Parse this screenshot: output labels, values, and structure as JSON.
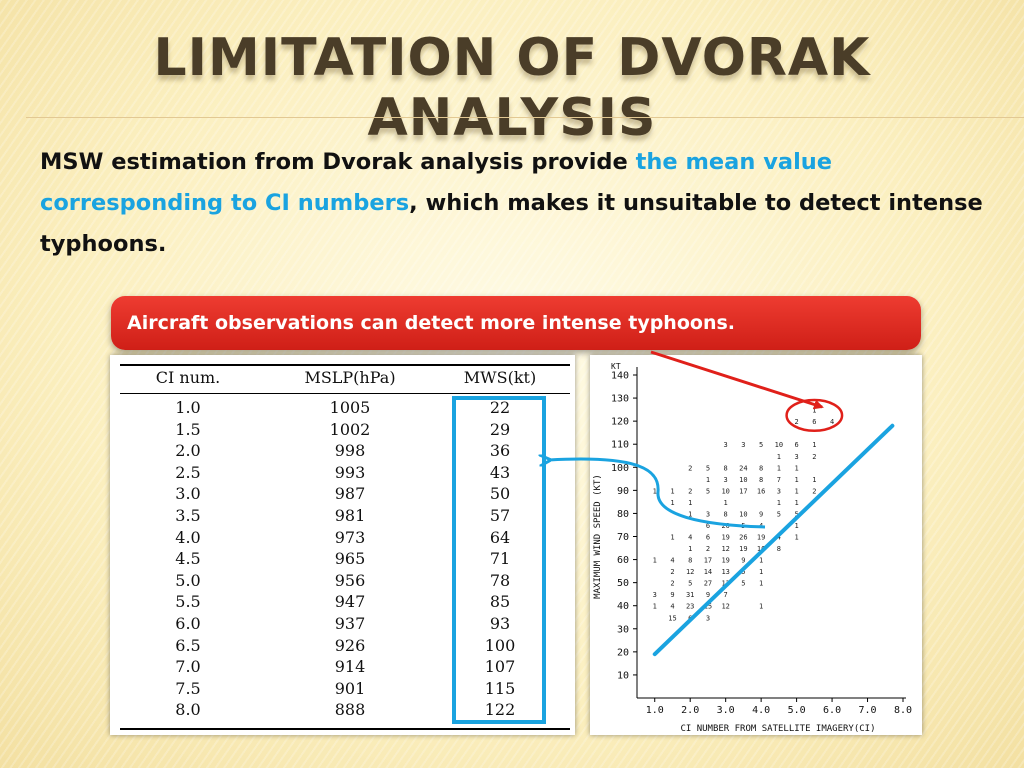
{
  "slide": {
    "title": "LIMITATION OF DVORAK ANALYSIS",
    "text_part1": "MSW estimation from Dvorak analysis provide ",
    "text_highlight": "the mean value corresponding to CI numbers",
    "text_part2": ", which makes it unsuitable to detect intense typhoons.",
    "banner": "Aircraft observations can detect more intense typhoons.",
    "colors": {
      "title": "#4a3d28",
      "accent": "#1aa3e0",
      "banner": "#e02a22",
      "arrow_red": "#e0201a",
      "arrow_blue": "#1aa3e0"
    }
  },
  "table": {
    "headers": [
      "CI num.",
      "MSLP(hPa)",
      "MWS(kt)"
    ],
    "rows": [
      [
        "1.0",
        "1005",
        "22"
      ],
      [
        "1.5",
        "1002",
        "29"
      ],
      [
        "2.0",
        "998",
        "36"
      ],
      [
        "2.5",
        "993",
        "43"
      ],
      [
        "3.0",
        "987",
        "50"
      ],
      [
        "3.5",
        "981",
        "57"
      ],
      [
        "4.0",
        "973",
        "64"
      ],
      [
        "4.5",
        "965",
        "71"
      ],
      [
        "5.0",
        "956",
        "78"
      ],
      [
        "5.5",
        "947",
        "85"
      ],
      [
        "6.0",
        "937",
        "93"
      ],
      [
        "6.5",
        "926",
        "100"
      ],
      [
        "7.0",
        "914",
        "107"
      ],
      [
        "7.5",
        "901",
        "115"
      ],
      [
        "8.0",
        "888",
        "122"
      ]
    ]
  },
  "chart_data": {
    "type": "scatter",
    "title": "",
    "xlabel": "CI NUMBER FROM SATELLITE IMAGERY(CI)",
    "ylabel": "MAXIMUM WIND SPEED (KT)",
    "y_unit": "KT",
    "xlim": [
      0.5,
      8.0
    ],
    "ylim": [
      0,
      140
    ],
    "x_ticks": [
      "1.0",
      "2.0",
      "3.0",
      "4.0",
      "5.0",
      "6.0",
      "7.0",
      "8.0"
    ],
    "y_ticks": [
      "10",
      "20",
      "30",
      "40",
      "50",
      "60",
      "70",
      "80",
      "90",
      "100",
      "110",
      "120",
      "130",
      "140"
    ],
    "points": [
      [
        1.0,
        40,
        "1"
      ],
      [
        1.5,
        40,
        "4"
      ],
      [
        2.0,
        40,
        "23"
      ],
      [
        2.5,
        40,
        "15"
      ],
      [
        3.0,
        40,
        "12"
      ],
      [
        4.0,
        40,
        "1"
      ],
      [
        1.5,
        35,
        "15"
      ],
      [
        2.0,
        35,
        "6"
      ],
      [
        2.5,
        35,
        "3"
      ],
      [
        1.0,
        45,
        "3"
      ],
      [
        1.5,
        45,
        "9"
      ],
      [
        2.0,
        45,
        "31"
      ],
      [
        2.5,
        45,
        "9"
      ],
      [
        3.0,
        45,
        "7"
      ],
      [
        1.5,
        50,
        "2"
      ],
      [
        2.0,
        50,
        "5"
      ],
      [
        2.5,
        50,
        "27"
      ],
      [
        3.0,
        50,
        "13"
      ],
      [
        3.5,
        50,
        "5"
      ],
      [
        4.0,
        50,
        "1"
      ],
      [
        1.5,
        55,
        "2"
      ],
      [
        2.0,
        55,
        "12"
      ],
      [
        2.5,
        55,
        "14"
      ],
      [
        3.0,
        55,
        "13"
      ],
      [
        3.5,
        55,
        "5"
      ],
      [
        4.0,
        55,
        "1"
      ],
      [
        1.0,
        60,
        "1"
      ],
      [
        1.5,
        60,
        "4"
      ],
      [
        2.0,
        60,
        "8"
      ],
      [
        2.5,
        60,
        "17"
      ],
      [
        3.0,
        60,
        "19"
      ],
      [
        3.5,
        60,
        "9"
      ],
      [
        4.0,
        60,
        "1"
      ],
      [
        2.0,
        65,
        "1"
      ],
      [
        2.5,
        65,
        "2"
      ],
      [
        3.0,
        65,
        "12"
      ],
      [
        3.5,
        65,
        "19"
      ],
      [
        4.0,
        65,
        "16"
      ],
      [
        4.5,
        65,
        "8"
      ],
      [
        1.5,
        70,
        "1"
      ],
      [
        2.0,
        70,
        "4"
      ],
      [
        2.5,
        70,
        "6"
      ],
      [
        3.0,
        70,
        "19"
      ],
      [
        3.5,
        70,
        "26"
      ],
      [
        4.0,
        70,
        "19"
      ],
      [
        4.5,
        70,
        "4"
      ],
      [
        5.0,
        70,
        "1"
      ],
      [
        2.5,
        75,
        "6"
      ],
      [
        3.0,
        75,
        "20"
      ],
      [
        3.5,
        75,
        "5"
      ],
      [
        4.0,
        75,
        "4"
      ],
      [
        5.0,
        75,
        "1"
      ],
      [
        2.0,
        80,
        "1"
      ],
      [
        2.5,
        80,
        "3"
      ],
      [
        3.0,
        80,
        "8"
      ],
      [
        3.5,
        80,
        "10"
      ],
      [
        4.0,
        80,
        "9"
      ],
      [
        4.5,
        80,
        "5"
      ],
      [
        5.0,
        80,
        "5"
      ],
      [
        1.0,
        90,
        "1"
      ],
      [
        1.5,
        90,
        "1"
      ],
      [
        2.0,
        90,
        "2"
      ],
      [
        2.5,
        90,
        "5"
      ],
      [
        3.0,
        90,
        "10"
      ],
      [
        3.5,
        90,
        "17"
      ],
      [
        4.0,
        90,
        "16"
      ],
      [
        4.5,
        90,
        "3"
      ],
      [
        5.0,
        90,
        "1"
      ],
      [
        5.5,
        90,
        "2"
      ],
      [
        1.5,
        85,
        "1"
      ],
      [
        2.0,
        85,
        "1"
      ],
      [
        3.0,
        85,
        "1"
      ],
      [
        4.5,
        85,
        "1"
      ],
      [
        5.0,
        85,
        "1"
      ],
      [
        2.5,
        95,
        "1"
      ],
      [
        3.0,
        95,
        "3"
      ],
      [
        3.5,
        95,
        "10"
      ],
      [
        4.0,
        95,
        "8"
      ],
      [
        4.5,
        95,
        "7"
      ],
      [
        5.0,
        95,
        "1"
      ],
      [
        5.5,
        95,
        "1"
      ],
      [
        2.0,
        100,
        "2"
      ],
      [
        2.5,
        100,
        "5"
      ],
      [
        3.0,
        100,
        "8"
      ],
      [
        3.5,
        100,
        "24"
      ],
      [
        4.0,
        100,
        "8"
      ],
      [
        4.5,
        100,
        "1"
      ],
      [
        5.0,
        100,
        "1"
      ],
      [
        4.5,
        105,
        "1"
      ],
      [
        5.0,
        105,
        "3"
      ],
      [
        5.5,
        105,
        "2"
      ],
      [
        3.0,
        110,
        "3"
      ],
      [
        3.5,
        110,
        "3"
      ],
      [
        4.0,
        110,
        "5"
      ],
      [
        4.5,
        110,
        "10"
      ],
      [
        5.0,
        110,
        "6"
      ],
      [
        5.5,
        110,
        "1"
      ],
      [
        5.0,
        120,
        "2"
      ],
      [
        5.5,
        120,
        "6"
      ],
      [
        6.0,
        120,
        "4"
      ],
      [
        5.5,
        125,
        "1"
      ]
    ],
    "highlighted_region": {
      "x": [
        5.0,
        6.0
      ],
      "y": [
        118,
        127
      ]
    },
    "trend_line": {
      "x": [
        1.0,
        7.7
      ],
      "y": [
        19,
        118
      ]
    }
  }
}
